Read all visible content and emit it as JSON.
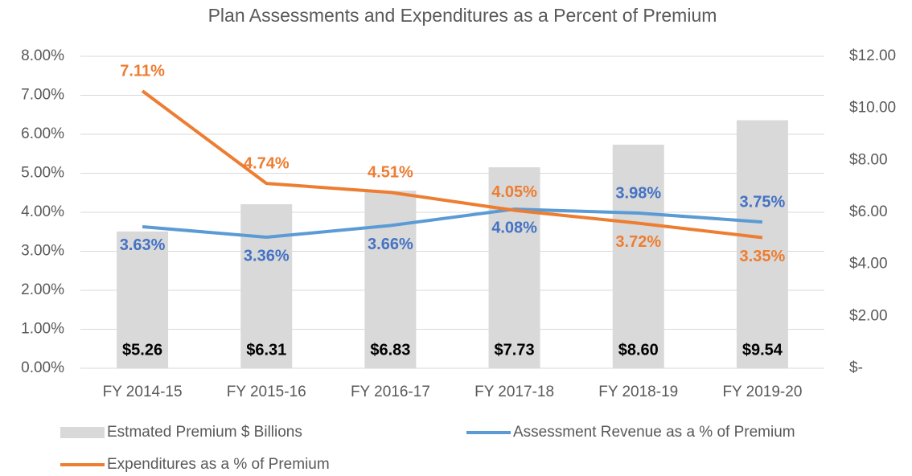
{
  "chart_data": {
    "type": "bar",
    "title": "Plan Assessments and Expenditures as a Percent of Premium",
    "categories": [
      "FY 2014-15",
      "FY 2015-16",
      "FY 2016-17",
      "FY 2017-18",
      "FY 2018-19",
      "FY 2019-20"
    ],
    "series": [
      {
        "name": "Estmated Premium $ Billions",
        "type": "bar",
        "axis": "y2",
        "color": "#d9d9d9",
        "label_color": "#000000",
        "values": [
          5.26,
          6.31,
          6.83,
          7.73,
          8.6,
          9.54
        ],
        "value_labels": [
          "$5.26",
          "$6.31",
          "$6.83",
          "$7.73",
          "$8.60",
          "$9.54"
        ]
      },
      {
        "name": "Assessment Revenue as a % of Premium",
        "type": "line",
        "color": "#5b9bd5",
        "label_color": "#4472c4",
        "values": [
          3.63,
          3.36,
          3.66,
          4.08,
          3.98,
          3.75
        ],
        "value_labels": [
          "3.63%",
          "3.36%",
          "3.66%",
          "4.08%",
          "3.98%",
          "3.75%"
        ]
      },
      {
        "name": "Expenditures  as a % of Premium",
        "type": "line",
        "color": "#ed7d31",
        "label_color": "#ed7d31",
        "values": [
          7.11,
          4.74,
          4.51,
          4.05,
          3.72,
          3.35
        ],
        "value_labels": [
          "7.11%",
          "4.74%",
          "4.51%",
          "4.05%",
          "3.72%",
          "3.35%"
        ]
      }
    ],
    "ylim": [
      0,
      8
    ],
    "yticks": [
      {
        "value": 0,
        "label": "0.00%"
      },
      {
        "value": 1,
        "label": "1.00%"
      },
      {
        "value": 2,
        "label": "2.00%"
      },
      {
        "value": 3,
        "label": "3.00%"
      },
      {
        "value": 4,
        "label": "4.00%"
      },
      {
        "value": 5,
        "label": "5.00%"
      },
      {
        "value": 6,
        "label": "6.00%"
      },
      {
        "value": 7,
        "label": "7.00%"
      },
      {
        "value": 8,
        "label": "8.00%"
      }
    ],
    "y2lim": [
      0,
      12
    ],
    "y2ticks": [
      {
        "value": 0,
        "label": "$-"
      },
      {
        "value": 2,
        "label": "$2.00"
      },
      {
        "value": 4,
        "label": "$4.00"
      },
      {
        "value": 6,
        "label": "$6.00"
      },
      {
        "value": 8,
        "label": "$8.00"
      },
      {
        "value": 10,
        "label": "$10.00"
      },
      {
        "value": 12,
        "label": "$12.00"
      }
    ],
    "grid": true,
    "legend": "bottom"
  }
}
